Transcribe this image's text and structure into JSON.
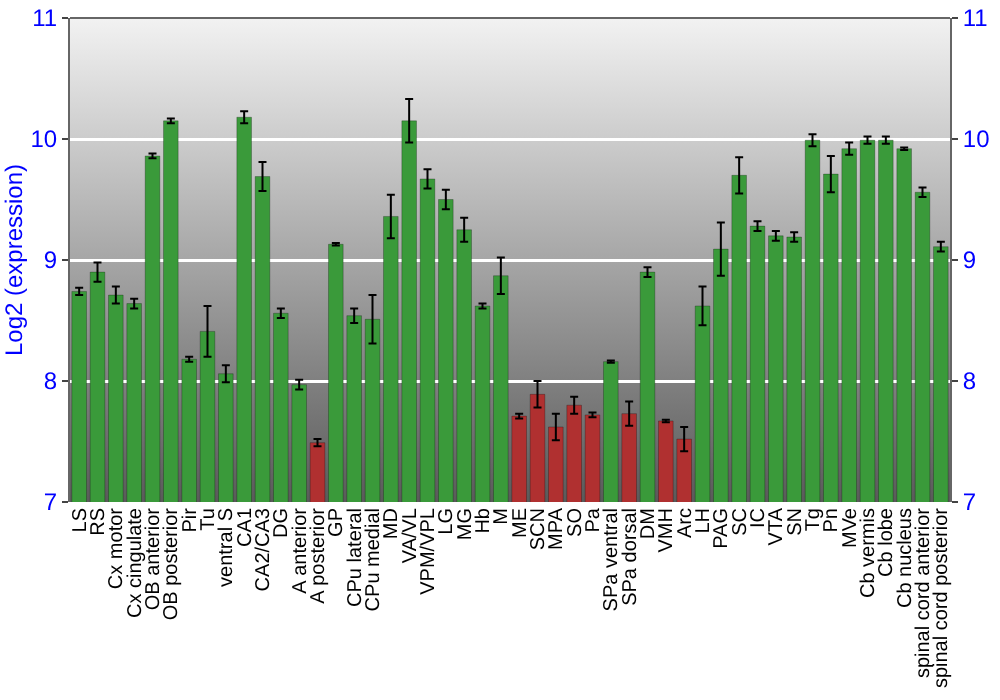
{
  "chart_data": {
    "type": "bar",
    "ylabel": "Log2 (expression)",
    "categories": [
      "LS",
      "RS",
      "Cx motor",
      "Cx cingulate",
      "OB anterior",
      "OB posterior",
      "Pir",
      "Tu",
      "ventral S",
      "CA1",
      "CA2/CA3",
      "DG",
      "A anterior",
      "A posterior",
      "GP",
      "CPu lateral",
      "CPu medial",
      "MD",
      "VA/VL",
      "VPM/VPL",
      "LG",
      "MG",
      "Hb",
      "M",
      "ME",
      "SCN",
      "MPA",
      "SO",
      "Pa",
      "SPa ventral",
      "SPa dorsal",
      "DM",
      "VMH",
      "Arc",
      "LH",
      "PAG",
      "SC",
      "IC",
      "VTA",
      "SN",
      "Tg",
      "Pn",
      "MVe",
      "Cb vermis",
      "Cb lobe",
      "Cb nucleus",
      "spinal cord anterior",
      "spinal cord posterior"
    ],
    "values": [
      8.74,
      8.9,
      8.71,
      8.64,
      9.86,
      10.15,
      8.18,
      8.41,
      8.06,
      10.18,
      9.69,
      8.56,
      7.97,
      7.49,
      9.13,
      8.54,
      8.51,
      9.36,
      10.15,
      9.67,
      9.5,
      9.25,
      8.62,
      8.87,
      7.71,
      7.89,
      7.62,
      7.8,
      7.72,
      8.16,
      7.73,
      8.9,
      7.67,
      7.52,
      8.62,
      9.09,
      9.7,
      9.28,
      9.2,
      9.19,
      9.99,
      9.71,
      9.92,
      9.99,
      9.99,
      9.92,
      9.56,
      9.11
    ],
    "errors": [
      0.03,
      0.08,
      0.07,
      0.04,
      0.02,
      0.02,
      0.02,
      0.21,
      0.07,
      0.05,
      0.12,
      0.04,
      0.04,
      0.03,
      0.01,
      0.06,
      0.2,
      0.18,
      0.18,
      0.08,
      0.08,
      0.1,
      0.02,
      0.15,
      0.02,
      0.11,
      0.11,
      0.07,
      0.02,
      0.01,
      0.1,
      0.04,
      0.01,
      0.1,
      0.16,
      0.22,
      0.15,
      0.04,
      0.04,
      0.04,
      0.05,
      0.15,
      0.05,
      0.03,
      0.03,
      0.01,
      0.04,
      0.04
    ],
    "colors": [
      "#3a9a3a",
      "#3a9a3a",
      "#3a9a3a",
      "#3a9a3a",
      "#3a9a3a",
      "#3a9a3a",
      "#3a9a3a",
      "#3a9a3a",
      "#3a9a3a",
      "#3a9a3a",
      "#3a9a3a",
      "#3a9a3a",
      "#3a9a3a",
      "#b03030",
      "#3a9a3a",
      "#3a9a3a",
      "#3a9a3a",
      "#3a9a3a",
      "#3a9a3a",
      "#3a9a3a",
      "#3a9a3a",
      "#3a9a3a",
      "#3a9a3a",
      "#3a9a3a",
      "#b03030",
      "#b03030",
      "#b03030",
      "#b03030",
      "#b03030",
      "#3a9a3a",
      "#b03030",
      "#3a9a3a",
      "#b03030",
      "#b03030",
      "#3a9a3a",
      "#3a9a3a",
      "#3a9a3a",
      "#3a9a3a",
      "#3a9a3a",
      "#3a9a3a",
      "#3a9a3a",
      "#3a9a3a",
      "#3a9a3a",
      "#3a9a3a",
      "#3a9a3a",
      "#3a9a3a",
      "#3a9a3a",
      "#3a9a3a"
    ],
    "ylim": [
      7,
      11
    ],
    "yticks": [
      7,
      8,
      9,
      10,
      11
    ],
    "y2lim": [
      7,
      11
    ],
    "y2ticks": [
      7,
      8,
      9,
      10,
      11
    ],
    "grid": true
  }
}
